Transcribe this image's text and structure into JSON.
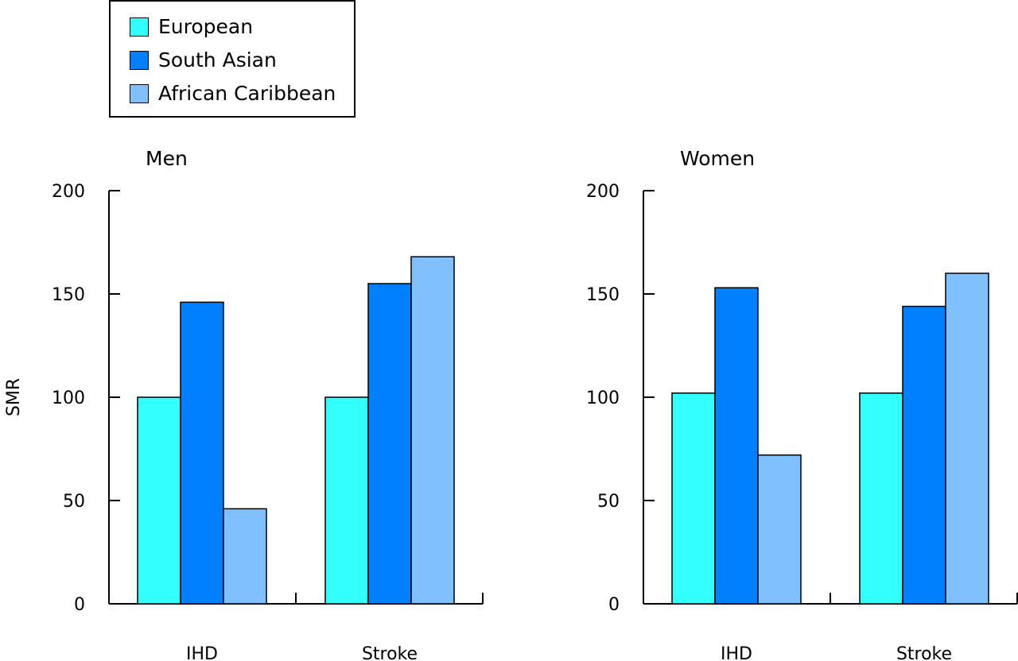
{
  "legend": {
    "items": [
      {
        "label": "European",
        "color": "#33ffff"
      },
      {
        "label": "South Asian",
        "color": "#0080ff"
      },
      {
        "label": "African Caribbean",
        "color": "#80c0ff"
      }
    ]
  },
  "chart_data": [
    {
      "type": "bar",
      "title": "Men",
      "ylabel": "SMR",
      "ylim": [
        0,
        200
      ],
      "yticks": [
        "0",
        "50",
        "100",
        "150",
        "200"
      ],
      "categories": [
        "IHD",
        "Stroke"
      ],
      "series": [
        {
          "name": "European",
          "values": [
            100,
            100
          ]
        },
        {
          "name": "South Asian",
          "values": [
            146,
            155
          ]
        },
        {
          "name": "African Caribbean",
          "values": [
            46,
            168
          ]
        }
      ]
    },
    {
      "type": "bar",
      "title": "Women",
      "ylim": [
        0,
        200
      ],
      "yticks": [
        "0",
        "50",
        "100",
        "150",
        "200"
      ],
      "categories": [
        "IHD",
        "Stroke"
      ],
      "series": [
        {
          "name": "European",
          "values": [
            102,
            102
          ]
        },
        {
          "name": "South Asian",
          "values": [
            153,
            144
          ]
        },
        {
          "name": "African Caribbean",
          "values": [
            72,
            160
          ]
        }
      ]
    }
  ]
}
